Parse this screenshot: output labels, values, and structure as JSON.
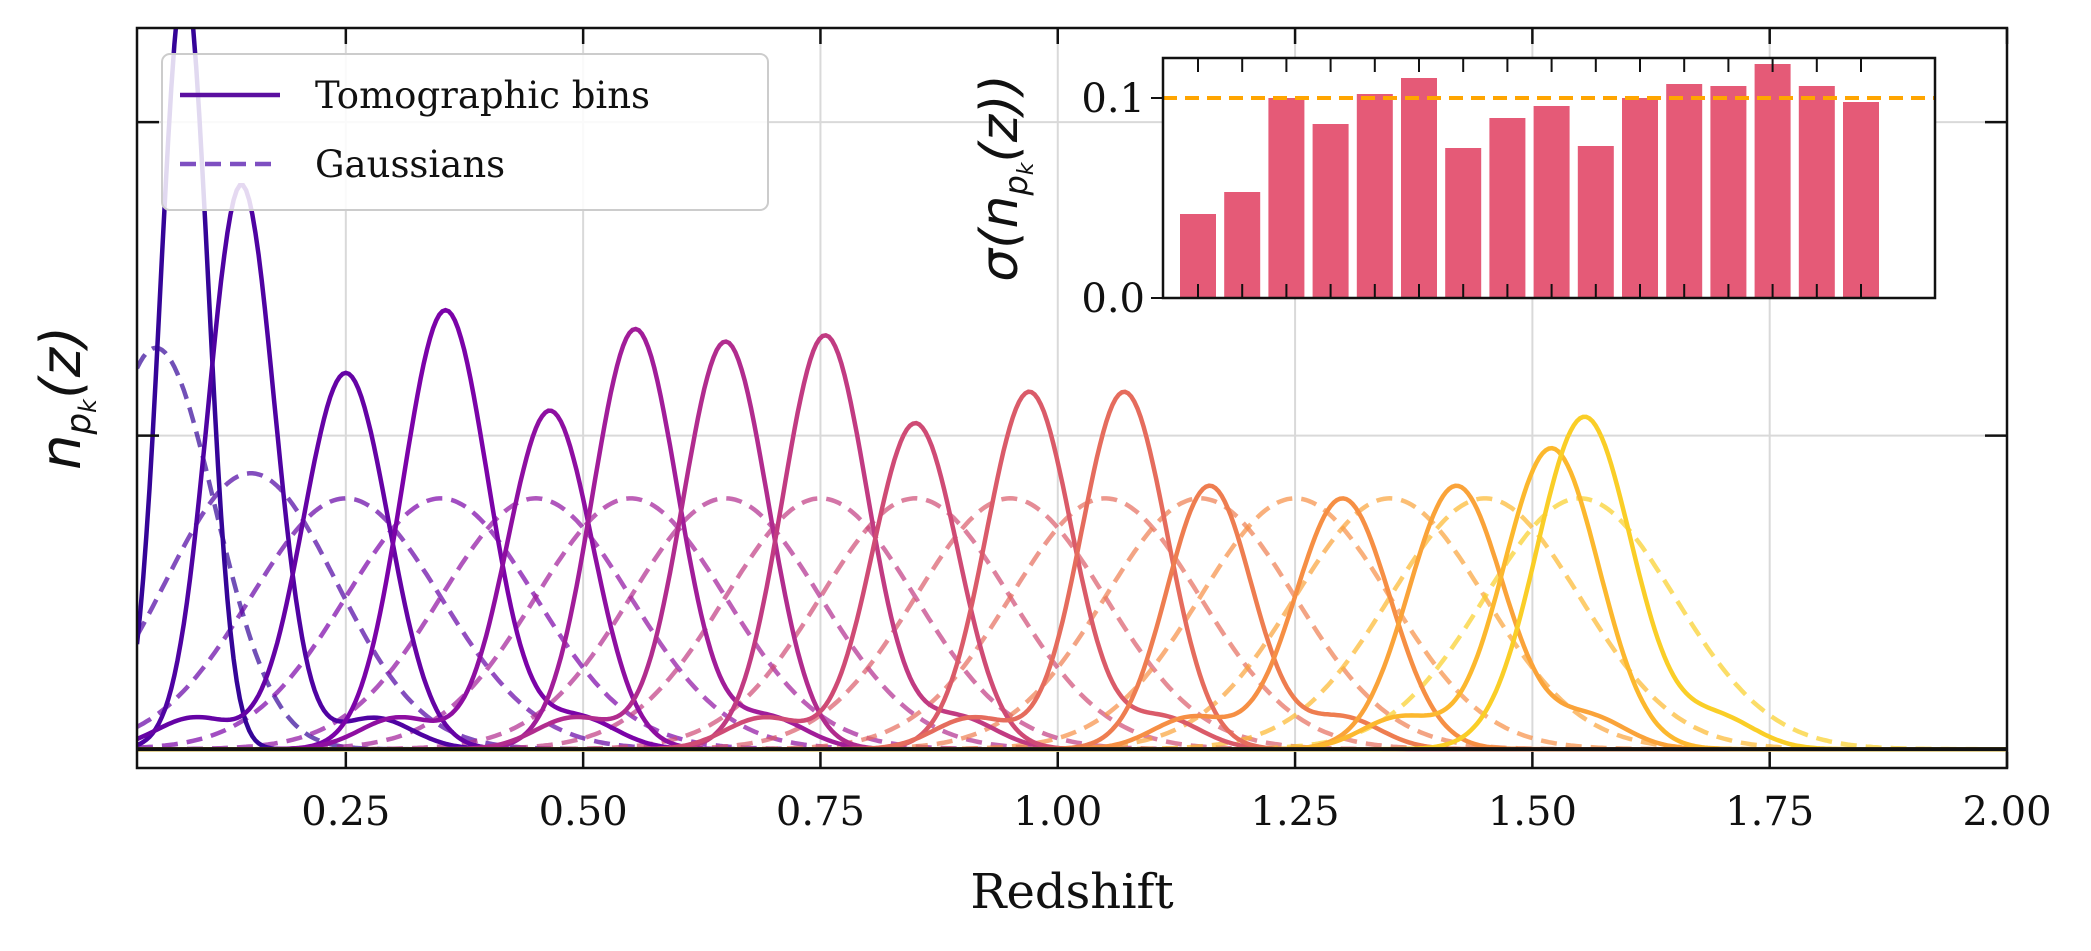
{
  "chart_data": [
    {
      "type": "line",
      "xlabel": "Redshift",
      "ylabel": "n_{p_k}(z)",
      "xlim": [
        0.03,
        2.0
      ],
      "ylim": [
        -0.03,
        1.15
      ],
      "x_ticks": [
        0.25,
        0.5,
        0.75,
        1.0,
        1.25,
        1.5,
        1.75,
        2.0
      ],
      "x_tick_labels": [
        "0.25",
        "0.50",
        "0.75",
        "1.00",
        "1.25",
        "1.50",
        "1.75",
        "2.00"
      ],
      "y_ticks_unlabeled": [
        0.5,
        1.0
      ],
      "grid": true,
      "legend": {
        "position": "top-left",
        "entries": [
          "Tomographic bins",
          "Gaussians"
        ]
      },
      "colormap": "plasma",
      "series": [
        {
          "type": "tomographic",
          "peak_z": 0.08,
          "peak": 1.23
        },
        {
          "type": "tomographic",
          "peak_z": 0.14,
          "peak": 0.9
        },
        {
          "type": "tomographic",
          "peak_z": 0.25,
          "peak": 0.6
        },
        {
          "type": "tomographic",
          "peak_z": 0.355,
          "peak": 0.7
        },
        {
          "type": "tomographic",
          "peak_z": 0.465,
          "peak": 0.54
        },
        {
          "type": "tomographic",
          "peak_z": 0.555,
          "peak": 0.67
        },
        {
          "type": "tomographic",
          "peak_z": 0.65,
          "peak": 0.65
        },
        {
          "type": "tomographic",
          "peak_z": 0.755,
          "peak": 0.66
        },
        {
          "type": "tomographic",
          "peak_z": 0.85,
          "peak": 0.52
        },
        {
          "type": "tomographic",
          "peak_z": 0.97,
          "peak": 0.57
        },
        {
          "type": "tomographic",
          "peak_z": 1.07,
          "peak": 0.57
        },
        {
          "type": "tomographic",
          "peak_z": 1.16,
          "peak": 0.42
        },
        {
          "type": "tomographic",
          "peak_z": 1.3,
          "peak": 0.4
        },
        {
          "type": "tomographic",
          "peak_z": 1.42,
          "peak": 0.42
        },
        {
          "type": "tomographic",
          "peak_z": 1.52,
          "peak": 0.48
        },
        {
          "type": "tomographic",
          "peak_z": 1.555,
          "peak": 0.53
        },
        {
          "type": "gaussian",
          "mean": 0.05,
          "peak": 0.64
        },
        {
          "type": "gaussian",
          "mean": 0.15,
          "peak": 0.44
        },
        {
          "type": "gaussian",
          "mean": 0.25,
          "peak": 0.4
        },
        {
          "type": "gaussian",
          "mean": 0.35,
          "peak": 0.4
        },
        {
          "type": "gaussian",
          "mean": 0.45,
          "peak": 0.4
        },
        {
          "type": "gaussian",
          "mean": 0.55,
          "peak": 0.4
        },
        {
          "type": "gaussian",
          "mean": 0.65,
          "peak": 0.4
        },
        {
          "type": "gaussian",
          "mean": 0.75,
          "peak": 0.4
        },
        {
          "type": "gaussian",
          "mean": 0.85,
          "peak": 0.4
        },
        {
          "type": "gaussian",
          "mean": 0.95,
          "peak": 0.4
        },
        {
          "type": "gaussian",
          "mean": 1.05,
          "peak": 0.4
        },
        {
          "type": "gaussian",
          "mean": 1.15,
          "peak": 0.4
        },
        {
          "type": "gaussian",
          "mean": 1.25,
          "peak": 0.4
        },
        {
          "type": "gaussian",
          "mean": 1.35,
          "peak": 0.4
        },
        {
          "type": "gaussian",
          "mean": 1.45,
          "peak": 0.4
        },
        {
          "type": "gaussian",
          "mean": 1.55,
          "peak": 0.4
        }
      ]
    },
    {
      "type": "bar",
      "ylabel": "σ(n_{p_k}(z))",
      "ylim": [
        0,
        0.12
      ],
      "y_ticks": [
        0.0,
        0.1
      ],
      "y_tick_labels": [
        "0.0",
        "0.1"
      ],
      "values": [
        0.042,
        0.053,
        0.1,
        0.087,
        0.102,
        0.11,
        0.075,
        0.09,
        0.096,
        0.076,
        0.1,
        0.107,
        0.106,
        0.117,
        0.106,
        0.098
      ],
      "bar_color": "#e55a77",
      "reference_line": {
        "value": 0.1,
        "style": "dashed",
        "color": "#ffa500"
      }
    }
  ]
}
